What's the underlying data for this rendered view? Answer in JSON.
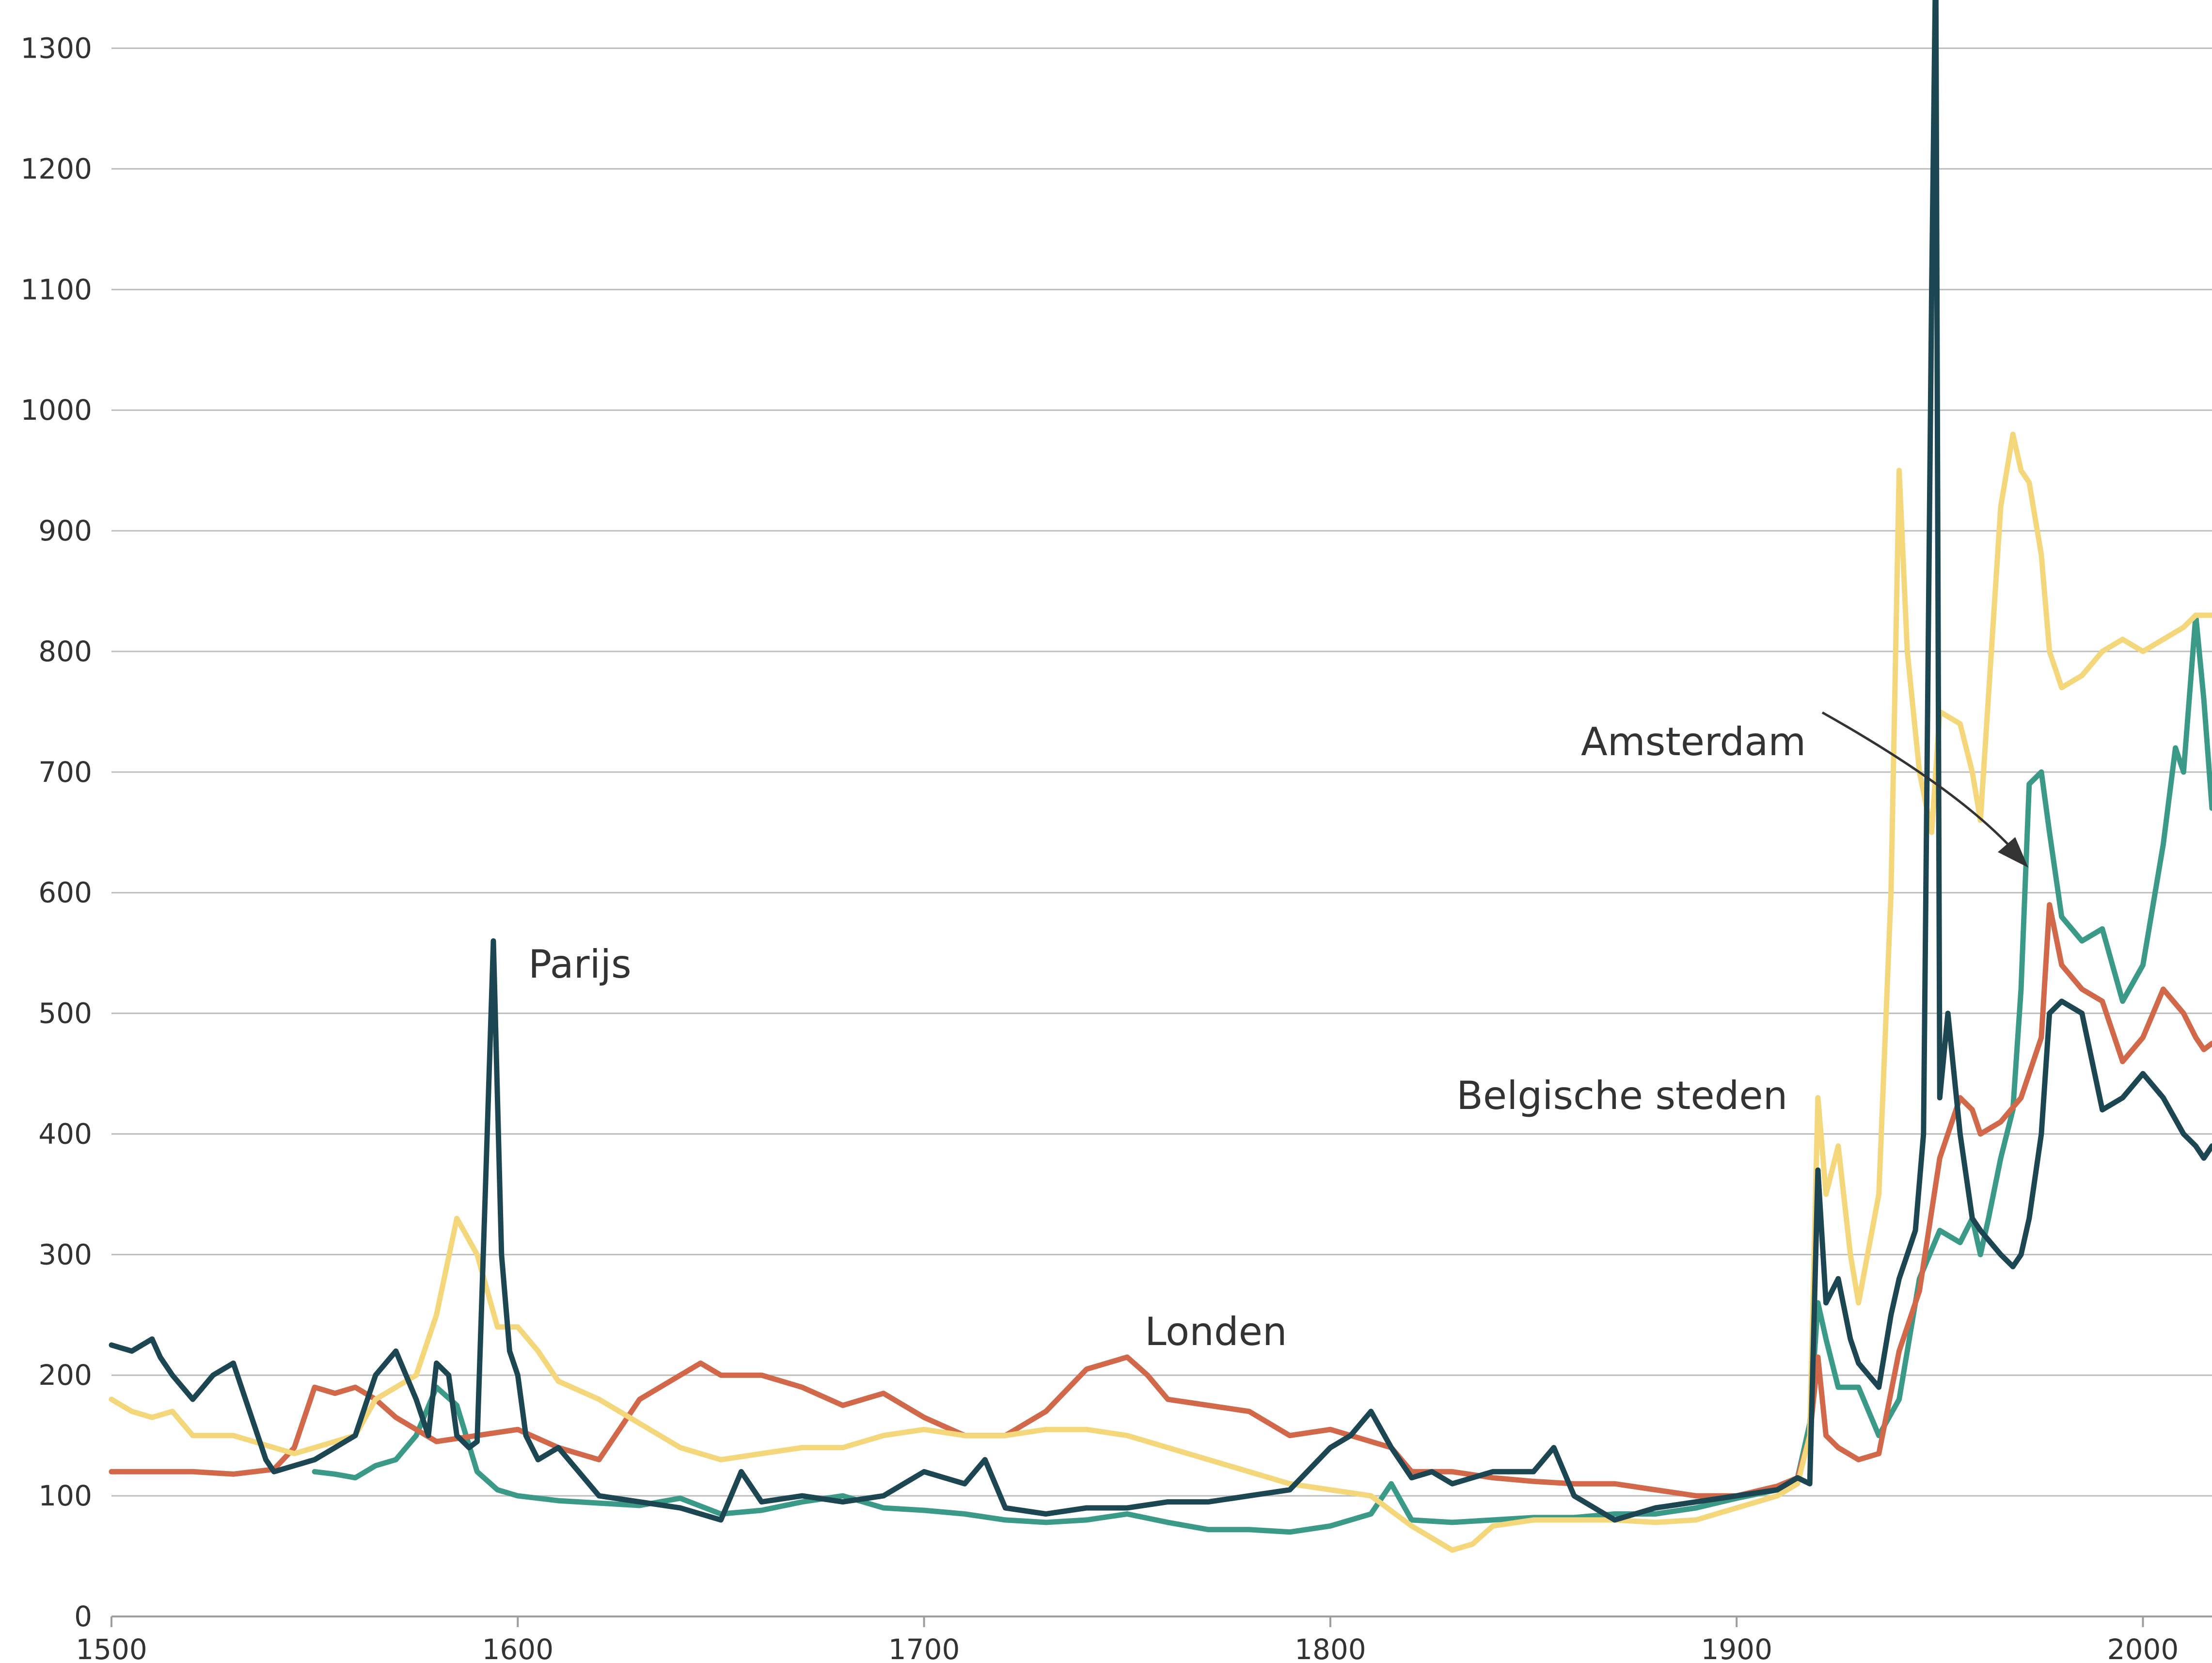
{
  "chart_data": {
    "type": "line",
    "xlim": [
      1500,
      2017
    ],
    "ylim": [
      0,
      1340
    ],
    "x_ticks": [
      "1500",
      "1600",
      "1700",
      "1800",
      "1900",
      "2000"
    ],
    "y_ticks": [
      "0",
      "100",
      "200",
      "300",
      "400",
      "500",
      "600",
      "700",
      "800",
      "900",
      "1000",
      "1100",
      "1200",
      "1300"
    ],
    "grid": true,
    "annotations": [
      {
        "text": "Parijs",
        "series": "parijs"
      },
      {
        "text": "Londen",
        "series": "londen"
      },
      {
        "text": "Amsterdam",
        "series": "amsterdam"
      },
      {
        "text": "Belgische steden",
        "series": "belgische-steden"
      }
    ],
    "series": [
      {
        "name": "Amsterdam",
        "key": "amsterdam",
        "color": "#3a9a87",
        "x": [
          1550,
          1555,
          1560,
          1565,
          1570,
          1575,
          1580,
          1585,
          1590,
          1595,
          1600,
          1610,
          1620,
          1630,
          1640,
          1650,
          1660,
          1670,
          1680,
          1690,
          1700,
          1710,
          1720,
          1730,
          1740,
          1750,
          1760,
          1770,
          1780,
          1790,
          1800,
          1805,
          1810,
          1815,
          1820,
          1830,
          1840,
          1850,
          1860,
          1870,
          1880,
          1890,
          1900,
          1910,
          1915,
          1918,
          1920,
          1922,
          1925,
          1930,
          1935,
          1940,
          1945,
          1950,
          1955,
          1958,
          1960,
          1962,
          1965,
          1968,
          1970,
          1972,
          1975,
          1977,
          1980,
          1985,
          1990,
          1995,
          2000,
          2005,
          2008,
          2010,
          2013,
          2015,
          2017
        ],
        "y": [
          120,
          118,
          115,
          125,
          130,
          150,
          190,
          175,
          120,
          105,
          100,
          96,
          94,
          92,
          98,
          85,
          88,
          95,
          100,
          90,
          88,
          85,
          80,
          78,
          80,
          85,
          78,
          72,
          72,
          70,
          75,
          80,
          85,
          110,
          80,
          78,
          80,
          82,
          82,
          85,
          85,
          90,
          98,
          105,
          115,
          160,
          260,
          230,
          190,
          190,
          150,
          180,
          280,
          320,
          310,
          330,
          300,
          330,
          380,
          420,
          520,
          690,
          700,
          650,
          580,
          560,
          570,
          510,
          540,
          640,
          720,
          700,
          830,
          760,
          670
        ]
      },
      {
        "name": "Londen",
        "key": "londen",
        "color": "#d2684a",
        "x": [
          1500,
          1510,
          1520,
          1530,
          1540,
          1545,
          1550,
          1555,
          1560,
          1565,
          1570,
          1575,
          1580,
          1590,
          1600,
          1610,
          1620,
          1630,
          1640,
          1645,
          1650,
          1660,
          1670,
          1680,
          1690,
          1700,
          1710,
          1720,
          1730,
          1740,
          1745,
          1750,
          1755,
          1760,
          1770,
          1780,
          1790,
          1800,
          1810,
          1815,
          1820,
          1830,
          1840,
          1850,
          1860,
          1870,
          1880,
          1890,
          1900,
          1910,
          1915,
          1918,
          1920,
          1922,
          1925,
          1930,
          1935,
          1940,
          1945,
          1950,
          1955,
          1958,
          1960,
          1965,
          1970,
          1975,
          1977,
          1980,
          1985,
          1990,
          1995,
          2000,
          2005,
          2010,
          2013,
          2015,
          2017
        ],
        "y": [
          120,
          120,
          120,
          118,
          122,
          140,
          190,
          185,
          190,
          180,
          165,
          155,
          145,
          150,
          155,
          140,
          130,
          180,
          200,
          210,
          200,
          200,
          190,
          175,
          185,
          165,
          150,
          150,
          170,
          205,
          210,
          215,
          200,
          180,
          175,
          170,
          150,
          155,
          145,
          140,
          120,
          120,
          115,
          112,
          110,
          110,
          105,
          100,
          100,
          108,
          115,
          150,
          215,
          150,
          140,
          130,
          135,
          220,
          270,
          380,
          430,
          420,
          400,
          410,
          430,
          480,
          590,
          540,
          520,
          510,
          460,
          480,
          520,
          500,
          480,
          470,
          475
        ]
      },
      {
        "name": "Belgische steden",
        "key": "belgische-steden",
        "color": "#f3d77a",
        "x": [
          1500,
          1505,
          1510,
          1515,
          1520,
          1530,
          1540,
          1545,
          1550,
          1560,
          1565,
          1570,
          1575,
          1580,
          1585,
          1590,
          1595,
          1600,
          1605,
          1610,
          1620,
          1630,
          1640,
          1650,
          1660,
          1670,
          1680,
          1690,
          1700,
          1710,
          1720,
          1730,
          1740,
          1750,
          1760,
          1770,
          1780,
          1790,
          1800,
          1810,
          1820,
          1830,
          1835,
          1840,
          1850,
          1860,
          1870,
          1880,
          1890,
          1900,
          1910,
          1915,
          1918,
          1920,
          1922,
          1925,
          1928,
          1930,
          1935,
          1938,
          1940,
          1942,
          1945,
          1948,
          1950,
          1955,
          1958,
          1960,
          1965,
          1968,
          1970,
          1972,
          1975,
          1977,
          1980,
          1985,
          1990,
          1995,
          2000,
          2005,
          2010,
          2013,
          2015,
          2017
        ],
        "y": [
          180,
          170,
          165,
          170,
          150,
          150,
          140,
          135,
          140,
          150,
          180,
          190,
          200,
          250,
          330,
          300,
          240,
          240,
          220,
          195,
          180,
          160,
          140,
          130,
          135,
          140,
          140,
          150,
          155,
          150,
          150,
          155,
          155,
          150,
          140,
          130,
          120,
          110,
          105,
          100,
          75,
          55,
          60,
          75,
          80,
          80,
          80,
          78,
          80,
          90,
          100,
          110,
          150,
          430,
          350,
          390,
          300,
          260,
          350,
          600,
          950,
          800,
          700,
          650,
          750,
          740,
          700,
          660,
          920,
          980,
          950,
          940,
          880,
          800,
          770,
          780,
          800,
          810,
          800,
          810,
          820,
          830,
          830,
          830
        ]
      },
      {
        "name": "Parijs",
        "key": "parijs",
        "color": "#1c4652",
        "x": [
          1500,
          1505,
          1510,
          1512,
          1515,
          1520,
          1525,
          1530,
          1533,
          1535,
          1538,
          1540,
          1545,
          1550,
          1555,
          1560,
          1565,
          1570,
          1575,
          1578,
          1580,
          1583,
          1585,
          1588,
          1590,
          1592,
          1594,
          1596,
          1598,
          1600,
          1602,
          1605,
          1610,
          1620,
          1630,
          1640,
          1650,
          1655,
          1660,
          1670,
          1680,
          1690,
          1700,
          1710,
          1715,
          1720,
          1730,
          1740,
          1750,
          1760,
          1770,
          1780,
          1790,
          1800,
          1805,
          1810,
          1815,
          1820,
          1825,
          1830,
          1840,
          1850,
          1855,
          1860,
          1870,
          1880,
          1890,
          1900,
          1910,
          1915,
          1918,
          1920,
          1922,
          1925,
          1928,
          1930,
          1935,
          1938,
          1940,
          1942,
          1944,
          1946,
          1948,
          1949,
          1950,
          1952,
          1955,
          1958,
          1960,
          1965,
          1968,
          1970,
          1972,
          1975,
          1977,
          1980,
          1985,
          1990,
          1995,
          2000,
          2005,
          2010,
          2013,
          2015,
          2017
        ],
        "y": [
          225,
          220,
          230,
          215,
          200,
          180,
          200,
          210,
          180,
          160,
          130,
          120,
          125,
          130,
          140,
          150,
          200,
          220,
          180,
          150,
          210,
          200,
          150,
          140,
          145,
          350,
          560,
          300,
          220,
          200,
          150,
          130,
          140,
          100,
          95,
          90,
          80,
          120,
          95,
          100,
          95,
          100,
          120,
          110,
          130,
          90,
          85,
          90,
          90,
          95,
          95,
          100,
          105,
          140,
          150,
          170,
          140,
          115,
          120,
          110,
          120,
          120,
          140,
          100,
          80,
          90,
          95,
          100,
          105,
          115,
          110,
          370,
          260,
          280,
          230,
          210,
          190,
          250,
          280,
          300,
          320,
          400,
          1100,
          1380,
          430,
          500,
          400,
          330,
          320,
          300,
          290,
          300,
          330,
          400,
          500,
          510,
          500,
          420,
          430,
          450,
          430,
          400,
          390,
          380,
          390
        ]
      }
    ]
  }
}
